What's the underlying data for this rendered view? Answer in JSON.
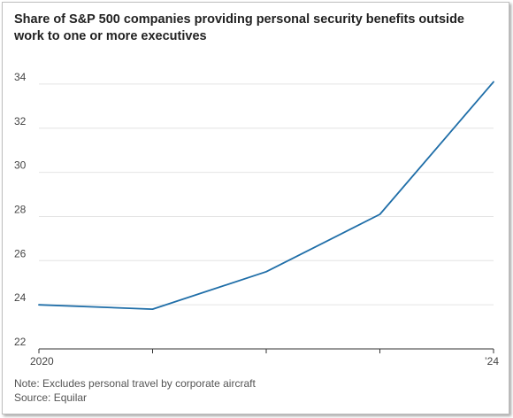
{
  "chart_data": {
    "type": "line",
    "title": "Share of S&P 500 companies providing personal security benefits outside work to one or more executives",
    "x": [
      2020,
      2021,
      2022,
      2023,
      2024
    ],
    "x_tick_labels": [
      "2020",
      "",
      "",
      "",
      "’24"
    ],
    "series": [
      {
        "values": [
          24.0,
          23.8,
          25.5,
          28.1,
          34.1
        ]
      }
    ],
    "ylim": [
      22,
      35
    ],
    "y_ticks": [
      22,
      24,
      26,
      28,
      30,
      32,
      34
    ],
    "grid": true,
    "line_color": "#1f6ea8",
    "grid_color": "#e4e4e4",
    "axis_color": "#333333"
  },
  "footer": {
    "note": "Note: Excludes personal travel by corporate aircraft",
    "source": "Source: Equilar"
  }
}
